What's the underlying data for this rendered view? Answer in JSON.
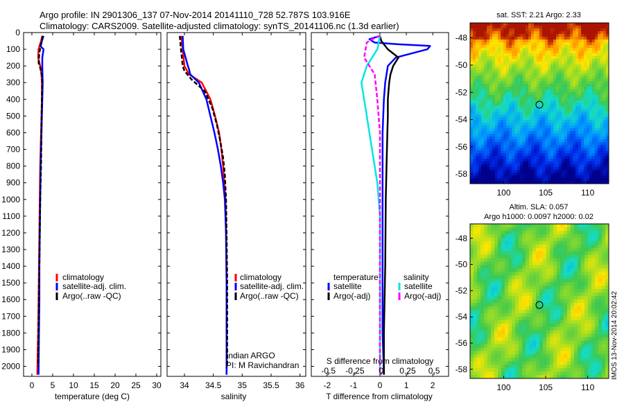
{
  "header": {
    "line1": "Argo profile: IN 2901306_137 07-Nov-2014 20141110_728 52.787S 103.916E",
    "line2": "Climatology: CARS2009. Satellite-adjusted climatology: synTS_20141106.nc (1.3d earlier)"
  },
  "colors": {
    "climatology": "#ff0000",
    "satellite": "#0000ff",
    "argo": "#000000",
    "sal_satellite": "#00e5e5",
    "sal_argo": "#ff00ff"
  },
  "chart_data": [
    {
      "id": "temperature",
      "type": "line",
      "xlabel": "temperature (deg C)",
      "ylabel": "",
      "xlim": [
        -2,
        31
      ],
      "ylim": [
        2060,
        0
      ],
      "xticks": [
        "0",
        "5",
        "10",
        "15",
        "20",
        "25",
        "30"
      ],
      "xtick_values": [
        0,
        5,
        10,
        15,
        20,
        25,
        30
      ],
      "yticks": [
        "0",
        "100",
        "200",
        "300",
        "400",
        "500",
        "600",
        "700",
        "800",
        "900",
        "1000",
        "1100",
        "1200",
        "1300",
        "1400",
        "1500",
        "1600",
        "1700",
        "1800",
        "1900",
        "2000"
      ],
      "ytick_values": [
        0,
        100,
        200,
        300,
        400,
        500,
        600,
        700,
        800,
        900,
        1000,
        1100,
        1200,
        1300,
        1400,
        1500,
        1600,
        1700,
        1800,
        1900,
        2000
      ],
      "legend": [
        "climatology",
        "satellite-adj. clim.",
        "Argo(..raw -QC)"
      ],
      "series": [
        {
          "name": "climatology",
          "color": "#ff0000",
          "dash": false,
          "x": [
            2.5,
            2.2,
            1.6,
            1.5,
            2.0,
            2.3,
            2.4,
            2.4,
            2.3,
            2.2,
            2.1,
            2.0,
            1.9,
            1.8,
            1.7,
            1.6,
            1.5,
            1.4,
            1.3
          ],
          "y": [
            20,
            50,
            100,
            150,
            200,
            250,
            300,
            400,
            500,
            600,
            700,
            800,
            1000,
            1200,
            1400,
            1600,
            1800,
            1900,
            2050
          ]
        },
        {
          "name": "satellite-adj. clim.",
          "color": "#0000ff",
          "dash": false,
          "x": [
            2.8,
            2.3,
            2.0,
            2.8,
            2.5,
            2.5,
            2.6,
            2.5,
            2.4,
            2.3,
            2.1,
            2.0,
            1.9,
            1.8,
            1.8,
            1.7,
            1.6
          ],
          "y": [
            20,
            60,
            80,
            100,
            150,
            200,
            300,
            400,
            500,
            600,
            800,
            1000,
            1200,
            1400,
            1600,
            1800,
            2050
          ]
        },
        {
          "name": "Argo(..raw -QC)",
          "color": "#000000",
          "dash": true,
          "x": [
            2.6,
            2.3,
            1.8,
            1.6,
            2.0,
            2.4,
            2.5,
            2.4,
            2.3,
            2.2,
            2.0,
            1.9,
            1.8,
            1.7,
            1.6,
            1.5
          ],
          "y": [
            20,
            60,
            120,
            180,
            210,
            260,
            300,
            400,
            600,
            800,
            1000,
            1200,
            1400,
            1600,
            1800,
            2000
          ]
        }
      ]
    },
    {
      "id": "salinity",
      "type": "line",
      "xlabel": "salinity",
      "ylabel": "",
      "xlim": [
        33.7,
        36.1
      ],
      "ylim": [
        2060,
        0
      ],
      "xticks": [
        "34",
        "34.5",
        "35",
        "35.5",
        "36"
      ],
      "xtick_values": [
        34,
        34.5,
        35,
        35.5,
        36
      ],
      "legend": [
        "climatology",
        "satellite-adj. clim.",
        "Argo(..raw -QC)"
      ],
      "annotation": [
        "Indian ARGO",
        "PI: M Ravichandran"
      ],
      "series": [
        {
          "name": "climatology",
          "color": "#ff0000",
          "dash": false,
          "x": [
            33.95,
            33.97,
            34.0,
            34.08,
            34.3,
            34.45,
            34.53,
            34.6,
            34.64,
            34.67,
            34.69,
            34.71,
            34.72,
            34.73,
            34.73,
            34.73
          ],
          "y": [
            20,
            100,
            200,
            250,
            300,
            400,
            500,
            600,
            700,
            800,
            900,
            1000,
            1200,
            1500,
            1800,
            2050
          ]
        },
        {
          "name": "satellite-adj. clim.",
          "color": "#0000ff",
          "dash": false,
          "x": [
            33.97,
            33.98,
            34.02,
            34.06,
            34.08,
            34.1,
            34.25,
            34.38,
            34.45,
            34.52,
            34.58,
            34.63,
            34.67,
            34.7,
            34.72,
            34.73,
            34.73
          ],
          "y": [
            20,
            100,
            150,
            200,
            220,
            250,
            300,
            400,
            500,
            600,
            700,
            800,
            900,
            1000,
            1200,
            1500,
            2050
          ]
        },
        {
          "name": "Argo(..raw -QC)",
          "color": "#000000",
          "dash": true,
          "x": [
            33.92,
            33.94,
            33.97,
            34.0,
            34.05,
            34.12,
            34.35,
            34.48,
            34.56,
            34.62,
            34.67,
            34.7,
            34.72,
            34.73,
            34.74,
            34.74
          ],
          "y": [
            20,
            100,
            200,
            230,
            250,
            280,
            350,
            450,
            550,
            650,
            750,
            850,
            1000,
            1200,
            1500,
            2000
          ]
        }
      ]
    },
    {
      "id": "difference",
      "type": "line",
      "xlabel": "T difference from climatology",
      "xlabel_top": "S difference from climatology",
      "xlim": [
        -2.6,
        2.6
      ],
      "ylim": [
        2060,
        0
      ],
      "xticks": [
        "-2",
        "-1",
        "0",
        "1",
        "2"
      ],
      "xtick_values": [
        -2,
        -1,
        0,
        1,
        2
      ],
      "sticks": [
        "-0.5",
        "-0.25",
        "0",
        "0.25",
        "0.5"
      ],
      "stick_values": [
        -1.95,
        -0.95,
        0.05,
        1.05,
        2.05
      ],
      "legend_temperature": {
        "title": "temperature",
        "items": [
          "satellite",
          "Argo(-adj)"
        ]
      },
      "legend_salinity": {
        "title": "salinity",
        "items": [
          "satellite",
          "Argo(-adj)"
        ]
      },
      "series": [
        {
          "name": "temperature satellite",
          "color": "#0000ff",
          "dash": false,
          "x": [
            0.0,
            -0.4,
            -0.2,
            0.7,
            1.9,
            1.8,
            0.6,
            0.3,
            0.25,
            0.2,
            0.15,
            0.1,
            0.1,
            0.1,
            0.1,
            0.1,
            0.15
          ],
          "y": [
            20,
            40,
            60,
            70,
            80,
            100,
            150,
            200,
            250,
            300,
            400,
            600,
            800,
            1000,
            1400,
            1800,
            2050
          ]
        },
        {
          "name": "temperature Argo(-adj)",
          "color": "#000000",
          "dash": false,
          "x": [
            0.0,
            0.05,
            0.3,
            0.7,
            0.5,
            0.4,
            0.35,
            0.3,
            0.3,
            0.28,
            0.25,
            0.22,
            0.2,
            0.15,
            0.15
          ],
          "y": [
            20,
            50,
            100,
            150,
            200,
            250,
            300,
            400,
            500,
            600,
            800,
            1000,
            1400,
            1800,
            2050
          ]
        },
        {
          "name": "salinity satellite",
          "color": "#00e5e5",
          "dash": false,
          "x": [
            0.0,
            -0.1,
            -0.5,
            -0.7,
            -0.5,
            -0.3,
            -0.1,
            0.0,
            0.0,
            0.0,
            0.0,
            0.0
          ],
          "y": [
            20,
            100,
            200,
            300,
            500,
            700,
            900,
            1100,
            1300,
            1600,
            1900,
            2050
          ]
        },
        {
          "name": "salinity Argo(-adj)",
          "color": "#ff00ff",
          "dash": true,
          "x": [
            0.0,
            -0.3,
            -0.5,
            -0.6,
            -0.2,
            -0.1,
            0.0,
            0.0,
            0.0,
            0.0,
            0.0,
            0.0
          ],
          "y": [
            20,
            40,
            60,
            150,
            250,
            400,
            600,
            800,
            1000,
            1300,
            1700,
            2050
          ]
        }
      ]
    },
    {
      "id": "sst_map",
      "type": "heatmap",
      "title": "sat. SST: 2.21  Argo: 2.33",
      "xlim": [
        96,
        112.5
      ],
      "ylim": [
        -58.7,
        -46.9
      ],
      "xticks": [
        "100",
        "105",
        "110"
      ],
      "xtick_values": [
        100,
        105,
        110
      ],
      "yticks": [
        "-48",
        "-50",
        "-52",
        "-54",
        "-56",
        "-58"
      ],
      "ytick_values": [
        -48,
        -50,
        -52,
        -54,
        -56,
        -58
      ],
      "marker": {
        "lon": 103.916,
        "lat": -52.787
      }
    },
    {
      "id": "sla_map",
      "type": "heatmap",
      "title": [
        "Altim. SLA: 0.057",
        "Argo h1000: 0.0097 h2000: 0.02"
      ],
      "xlim": [
        96,
        112.5
      ],
      "ylim": [
        -58.7,
        -46.9
      ],
      "xticks": [
        "100",
        "105",
        "110"
      ],
      "xtick_values": [
        100,
        105,
        110
      ],
      "yticks": [
        "-48",
        "-50",
        "-52",
        "-54",
        "-56",
        "-58"
      ],
      "ytick_values": [
        -48,
        -50,
        -52,
        -54,
        -56,
        -58
      ],
      "marker": {
        "lon": 103.916,
        "lat": -52.787
      }
    }
  ],
  "watermark": "IMOS 13-Nov-2014 20:02:42"
}
